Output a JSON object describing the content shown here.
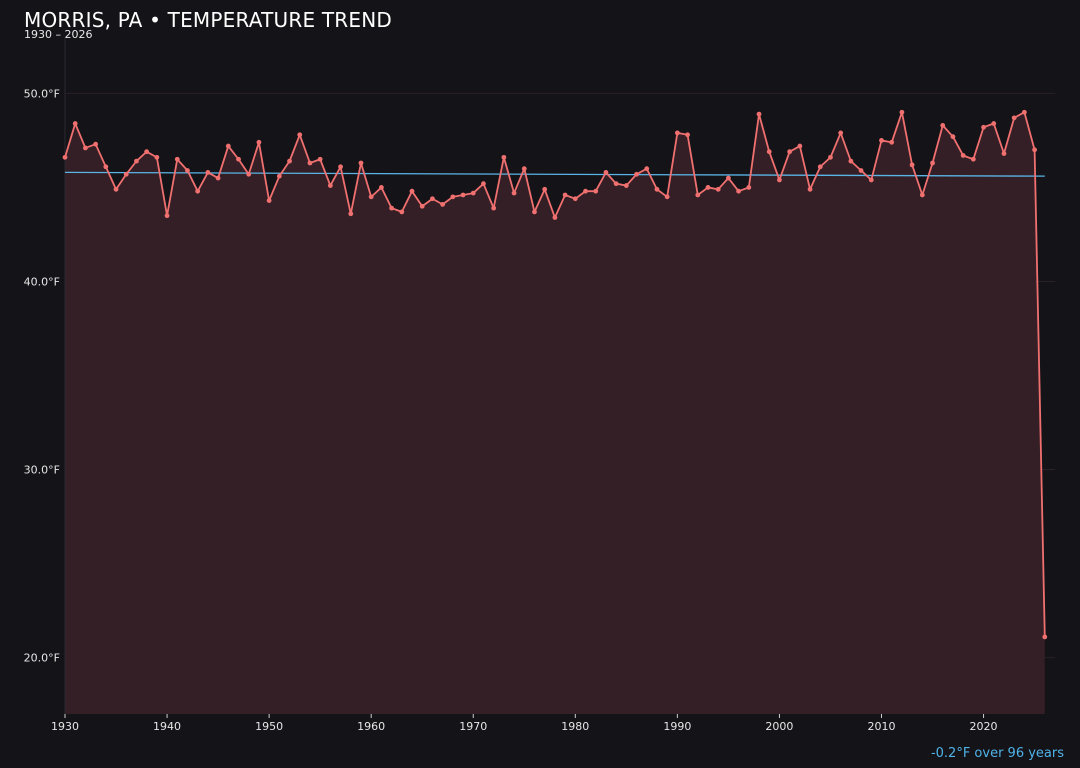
{
  "header": {
    "title": "MORRIS, PA • TEMPERATURE TREND",
    "subtitle": "1930 – 2026"
  },
  "trend_note": "-0.2°F over 96 years",
  "colors": {
    "background": "#141318",
    "series": "#f07070",
    "area_fill": "#331f25",
    "trend": "#5ab4e6",
    "grid": "#2a2026"
  },
  "chart_data": {
    "type": "line",
    "title": "MORRIS, PA • TEMPERATURE TREND",
    "subtitle": "1930 – 2026",
    "xlabel": "",
    "ylabel": "",
    "xlim": [
      1930,
      2027
    ],
    "ylim": [
      17,
      53
    ],
    "x_ticks": [
      1930,
      1940,
      1950,
      1960,
      1970,
      1980,
      1990,
      2000,
      2010,
      2020
    ],
    "y_ticks": [
      20,
      30,
      40,
      50
    ],
    "y_tick_labels": [
      "20.0°F",
      "30.0°F",
      "40.0°F",
      "50.0°F"
    ],
    "grid": true,
    "legend": "none",
    "area_fill": true,
    "series": [
      {
        "x": [
          1930,
          1931,
          1932,
          1933,
          1934,
          1935,
          1936,
          1937,
          1938,
          1939,
          1940,
          1941,
          1942,
          1943,
          1944,
          1945,
          1946,
          1947,
          1948,
          1949,
          1950,
          1951,
          1952,
          1953,
          1954,
          1955,
          1956,
          1957,
          1958,
          1959,
          1960,
          1961,
          1962,
          1963,
          1964,
          1965,
          1966,
          1967,
          1968,
          1969,
          1970,
          1971,
          1972,
          1973,
          1974,
          1975,
          1976,
          1977,
          1978,
          1979,
          1980,
          1981,
          1982,
          1983,
          1984,
          1985,
          1986,
          1987,
          1988,
          1989,
          1990,
          1991,
          1992,
          1993,
          1994,
          1995,
          1996,
          1997,
          1998,
          1999,
          2000,
          2001,
          2002,
          2003,
          2004,
          2005,
          2006,
          2007,
          2008,
          2009,
          2010,
          2011,
          2012,
          2013,
          2014,
          2015,
          2016,
          2017,
          2018,
          2019,
          2020,
          2021,
          2022,
          2023,
          2024,
          2025,
          2026
        ],
        "values": [
          46.6,
          48.4,
          47.1,
          47.3,
          46.1,
          44.9,
          45.7,
          46.4,
          46.9,
          46.6,
          43.5,
          46.5,
          45.9,
          44.8,
          45.8,
          45.5,
          47.2,
          46.5,
          45.7,
          47.4,
          44.3,
          45.6,
          46.4,
          47.8,
          46.3,
          46.5,
          45.1,
          46.1,
          43.6,
          46.3,
          44.5,
          45.0,
          43.9,
          43.7,
          44.8,
          44.0,
          44.4,
          44.1,
          44.5,
          44.6,
          44.7,
          45.2,
          43.9,
          46.6,
          44.7,
          46.0,
          43.7,
          44.9,
          43.4,
          44.6,
          44.4,
          44.8,
          44.8,
          45.8,
          45.2,
          45.1,
          45.7,
          46.0,
          44.9,
          44.5,
          47.9,
          47.8,
          44.6,
          45.0,
          44.9,
          45.5,
          44.8,
          45.0,
          48.9,
          46.9,
          45.4,
          46.9,
          47.2,
          44.9,
          46.1,
          46.6,
          47.9,
          46.4,
          45.9,
          45.4,
          47.5,
          47.4,
          49.0,
          46.2,
          44.6,
          46.3,
          48.3,
          47.7,
          46.7,
          46.5,
          48.2,
          48.4,
          46.8,
          48.7,
          49.0,
          47.0,
          21.1
        ]
      }
    ],
    "trend_line": {
      "x": [
        1930,
        2026
      ],
      "y": [
        45.8,
        45.6
      ]
    }
  }
}
